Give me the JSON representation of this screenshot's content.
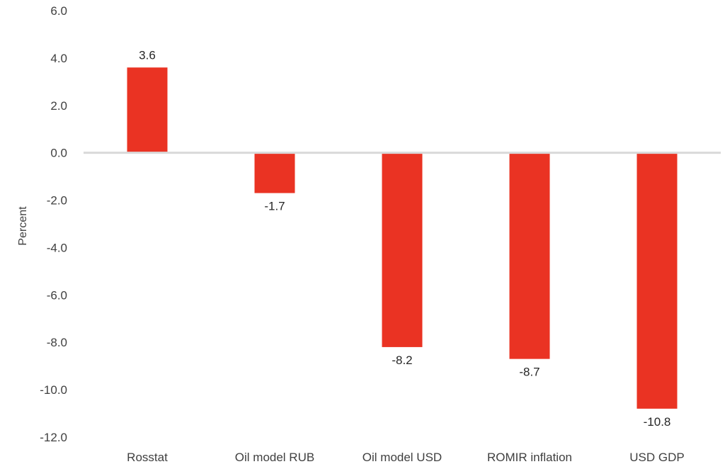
{
  "chart_data": {
    "type": "bar",
    "categories": [
      "Rosstat",
      "Oil model RUB",
      "Oil model USD",
      "ROMIR inflation",
      "USD GDP"
    ],
    "values": [
      3.6,
      -1.7,
      -8.2,
      -8.7,
      -10.8
    ],
    "data_labels": [
      "3.6",
      "-1.7",
      "-8.2",
      "-8.7",
      "-10.8"
    ],
    "title": "",
    "xlabel": "",
    "ylabel": "Percent",
    "ylim": [
      -12,
      6
    ],
    "yticks": [
      6,
      4,
      2,
      0,
      -2,
      -4,
      -6,
      -8,
      -10,
      -12
    ],
    "ytick_labels": [
      "6.0",
      "4.0",
      "2.0",
      "0.0",
      "-2.0",
      "-4.0",
      "-6.0",
      "-8.0",
      "-10.0",
      "-12.0"
    ],
    "grid": false,
    "legend": "none",
    "colors": {
      "bar": "#EA3323",
      "zero_line": "#D9D9D9"
    }
  }
}
